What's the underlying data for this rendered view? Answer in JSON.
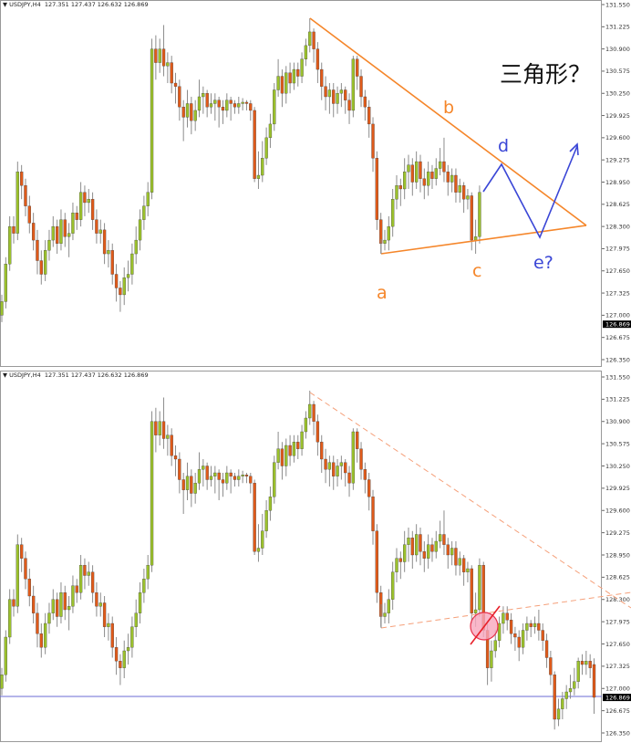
{
  "header": {
    "symbol": "USDJPY,H4",
    "ohlc": "127.351 127.437 126.632 126.869",
    "arrow": "▼"
  },
  "current_price": "126.869",
  "colors": {
    "bull": "#9bc12c",
    "bear": "#df5a1a",
    "wick": "#8c8c8c",
    "triangle": "#f5862a",
    "forecast": "#3a46d6",
    "current_line": "#6b6bd6",
    "circle": "#f07a9a",
    "slash": "#e8202a"
  },
  "annotations": {
    "a": "a",
    "b": "b",
    "c": "c",
    "d": "d",
    "e": "e?",
    "title": "三角形？"
  },
  "chart_data": [
    {
      "type": "candlestick",
      "panel": "top",
      "candles_shown": 122,
      "ylim": [
        126.35,
        131.55
      ],
      "yticks": [
        "131.550",
        "131.225",
        "130.900",
        "130.575",
        "130.250",
        "129.925",
        "129.600",
        "129.275",
        "128.950",
        "128.625",
        "128.300",
        "127.975",
        "127.650",
        "127.325",
        "127.000",
        "126.675",
        "126.350"
      ],
      "grid": false
    },
    {
      "type": "candlestick",
      "panel": "bottom",
      "candles_shown": 151,
      "ylim": [
        126.35,
        131.55
      ],
      "yticks": [
        "131.550",
        "131.225",
        "130.900",
        "130.575",
        "130.250",
        "129.925",
        "129.600",
        "129.275",
        "128.950",
        "128.625",
        "128.300",
        "127.975",
        "127.650",
        "127.325",
        "127.000",
        "126.675",
        "126.350"
      ],
      "grid": false
    }
  ],
  "candles": [
    [
      127.0,
      127.3,
      126.9,
      127.2
    ],
    [
      127.2,
      127.85,
      127.1,
      127.75
    ],
    [
      127.75,
      128.45,
      127.65,
      128.3
    ],
    [
      128.3,
      128.45,
      128.05,
      128.2
    ],
    [
      128.2,
      129.25,
      128.1,
      129.1
    ],
    [
      129.1,
      129.2,
      128.7,
      128.9
    ],
    [
      128.9,
      129.0,
      128.45,
      128.6
    ],
    [
      128.6,
      128.75,
      128.2,
      128.35
    ],
    [
      128.35,
      128.5,
      127.95,
      128.1
    ],
    [
      128.1,
      128.25,
      127.6,
      127.8
    ],
    [
      127.8,
      127.95,
      127.45,
      127.6
    ],
    [
      127.6,
      128.1,
      127.5,
      127.95
    ],
    [
      127.95,
      128.25,
      127.8,
      128.1
    ],
    [
      128.1,
      128.45,
      128.0,
      128.3
    ],
    [
      128.3,
      128.4,
      127.9,
      128.05
    ],
    [
      128.05,
      128.55,
      127.95,
      128.4
    ],
    [
      128.4,
      128.5,
      128.0,
      128.15
    ],
    [
      128.15,
      128.35,
      127.85,
      128.2
    ],
    [
      128.2,
      128.65,
      128.1,
      128.5
    ],
    [
      128.5,
      128.6,
      128.25,
      128.4
    ],
    [
      128.4,
      128.95,
      128.3,
      128.8
    ],
    [
      128.8,
      128.9,
      128.45,
      128.65
    ],
    [
      128.65,
      128.85,
      128.5,
      128.7
    ],
    [
      128.7,
      128.8,
      128.25,
      128.4
    ],
    [
      128.4,
      128.55,
      128.05,
      128.2
    ],
    [
      128.2,
      128.4,
      128.05,
      128.25
    ],
    [
      128.25,
      128.35,
      127.75,
      127.9
    ],
    [
      127.9,
      128.1,
      127.7,
      127.95
    ],
    [
      127.95,
      128.05,
      127.45,
      127.6
    ],
    [
      127.6,
      127.75,
      127.2,
      127.4
    ],
    [
      127.4,
      127.5,
      127.05,
      127.3
    ],
    [
      127.3,
      127.7,
      127.15,
      127.55
    ],
    [
      127.55,
      127.8,
      127.35,
      127.6
    ],
    [
      127.6,
      128.05,
      127.45,
      127.9
    ],
    [
      127.9,
      128.3,
      127.75,
      128.1
    ],
    [
      128.1,
      128.55,
      127.95,
      128.4
    ],
    [
      128.4,
      128.75,
      128.25,
      128.6
    ],
    [
      128.6,
      128.95,
      128.45,
      128.8
    ],
    [
      128.8,
      131.05,
      128.7,
      130.9
    ],
    [
      130.9,
      131.1,
      130.45,
      130.7
    ],
    [
      130.7,
      131.05,
      130.55,
      130.9
    ],
    [
      130.9,
      131.25,
      130.5,
      130.65
    ],
    [
      130.65,
      130.85,
      130.4,
      130.7
    ],
    [
      130.7,
      130.8,
      130.25,
      130.4
    ],
    [
      130.4,
      130.55,
      130.1,
      130.35
    ],
    [
      130.35,
      130.45,
      129.85,
      130.05
    ],
    [
      130.05,
      130.15,
      129.55,
      129.9
    ],
    [
      129.9,
      130.3,
      129.75,
      130.1
    ],
    [
      130.1,
      130.2,
      129.65,
      129.85
    ],
    [
      129.85,
      130.15,
      129.7,
      130.0
    ],
    [
      130.0,
      130.45,
      129.9,
      130.2
    ],
    [
      130.2,
      130.35,
      129.95,
      130.25
    ],
    [
      130.25,
      130.3,
      129.9,
      130.05
    ],
    [
      130.05,
      130.25,
      129.95,
      130.1
    ],
    [
      130.1,
      130.25,
      129.85,
      130.15
    ],
    [
      130.15,
      130.2,
      129.75,
      130.05
    ],
    [
      130.05,
      130.15,
      129.8,
      130.0
    ],
    [
      130.0,
      130.25,
      129.9,
      130.15
    ],
    [
      130.15,
      130.2,
      129.85,
      130.1
    ],
    [
      130.1,
      130.15,
      129.95,
      130.05
    ],
    [
      130.05,
      130.2,
      129.95,
      130.1
    ],
    [
      130.1,
      130.18,
      130.0,
      130.12
    ],
    [
      130.12,
      130.15,
      130.0,
      130.1
    ],
    [
      130.1,
      130.15,
      129.85,
      130.0
    ],
    [
      130.0,
      130.05,
      128.95,
      129.0
    ],
    [
      129.0,
      129.4,
      128.85,
      129.05
    ],
    [
      129.05,
      129.55,
      128.95,
      129.3
    ],
    [
      129.3,
      129.75,
      129.2,
      129.6
    ],
    [
      129.6,
      129.95,
      129.45,
      129.8
    ],
    [
      129.8,
      130.4,
      129.7,
      130.3
    ],
    [
      130.3,
      130.75,
      130.2,
      130.5
    ],
    [
      130.5,
      130.6,
      130.05,
      130.25
    ],
    [
      130.25,
      130.65,
      130.1,
      130.55
    ],
    [
      130.55,
      130.7,
      130.25,
      130.4
    ],
    [
      130.4,
      130.7,
      130.3,
      130.6
    ],
    [
      130.6,
      130.7,
      130.35,
      130.5
    ],
    [
      130.5,
      130.85,
      130.4,
      130.75
    ],
    [
      130.75,
      131.05,
      130.65,
      130.95
    ],
    [
      130.95,
      131.35,
      130.85,
      131.15
    ],
    [
      131.15,
      131.2,
      130.7,
      130.9
    ],
    [
      130.9,
      131.0,
      130.4,
      130.6
    ],
    [
      130.6,
      130.7,
      130.15,
      130.35
    ],
    [
      130.35,
      130.5,
      130.0,
      130.2
    ],
    [
      130.2,
      130.4,
      129.95,
      130.3
    ],
    [
      130.3,
      130.4,
      129.9,
      130.1
    ],
    [
      130.1,
      130.35,
      129.95,
      130.25
    ],
    [
      130.25,
      130.4,
      130.05,
      130.3
    ],
    [
      130.3,
      130.35,
      129.95,
      130.15
    ],
    [
      130.15,
      130.25,
      129.8,
      130.0
    ],
    [
      130.0,
      130.8,
      129.9,
      130.75
    ],
    [
      130.75,
      130.8,
      130.3,
      130.5
    ],
    [
      130.5,
      130.6,
      130.05,
      130.2
    ],
    [
      130.2,
      130.3,
      129.85,
      130.05
    ],
    [
      130.05,
      130.15,
      129.6,
      129.8
    ],
    [
      129.8,
      129.9,
      129.1,
      129.3
    ],
    [
      129.3,
      129.4,
      128.25,
      128.4
    ],
    [
      128.4,
      128.5,
      127.9,
      128.05
    ],
    [
      128.05,
      128.25,
      127.95,
      128.1
    ],
    [
      128.1,
      128.45,
      127.95,
      128.3
    ],
    [
      128.3,
      128.85,
      128.15,
      128.7
    ],
    [
      128.7,
      129.05,
      128.55,
      128.9
    ],
    [
      128.9,
      129.0,
      128.6,
      128.85
    ],
    [
      128.85,
      129.3,
      128.7,
      129.1
    ],
    [
      129.1,
      129.35,
      128.85,
      129.2
    ],
    [
      129.2,
      129.3,
      128.75,
      128.95
    ],
    [
      128.95,
      129.4,
      128.85,
      129.25
    ],
    [
      129.25,
      129.35,
      128.8,
      129.0
    ],
    [
      129.0,
      129.15,
      128.7,
      128.9
    ],
    [
      128.9,
      129.25,
      128.75,
      129.1
    ],
    [
      129.1,
      129.2,
      128.85,
      129.0
    ],
    [
      129.0,
      129.3,
      128.9,
      129.15
    ],
    [
      129.15,
      129.45,
      129.05,
      129.25
    ],
    [
      129.25,
      129.6,
      128.95,
      129.1
    ],
    [
      129.1,
      129.2,
      128.75,
      128.95
    ],
    [
      128.95,
      129.15,
      128.8,
      129.05
    ],
    [
      129.05,
      129.15,
      128.65,
      128.8
    ],
    [
      128.8,
      129.0,
      128.65,
      128.9
    ],
    [
      128.9,
      128.95,
      128.5,
      128.7
    ],
    [
      128.7,
      128.85,
      128.55,
      128.75
    ],
    [
      128.75,
      128.8,
      127.95,
      128.1
    ],
    [
      128.1,
      128.4,
      127.9,
      128.15
    ],
    [
      128.15,
      128.9,
      128.05,
      128.8
    ],
    [
      128.8,
      128.85,
      127.75,
      127.85
    ],
    [
      127.85,
      127.95,
      127.05,
      127.3
    ],
    [
      127.3,
      127.7,
      127.1,
      127.55
    ],
    [
      127.55,
      127.85,
      127.45,
      127.7
    ],
    [
      127.7,
      128.05,
      127.6,
      127.95
    ],
    [
      127.95,
      128.2,
      127.8,
      128.1
    ],
    [
      128.1,
      128.2,
      127.85,
      128.0
    ],
    [
      128.0,
      128.1,
      127.65,
      127.8
    ],
    [
      127.8,
      127.9,
      127.55,
      127.75
    ],
    [
      127.75,
      127.85,
      127.4,
      127.6
    ],
    [
      127.6,
      127.95,
      127.5,
      127.85
    ],
    [
      127.85,
      128.05,
      127.7,
      127.95
    ],
    [
      127.95,
      128.0,
      127.75,
      127.9
    ],
    [
      127.9,
      128.05,
      127.8,
      127.95
    ],
    [
      127.95,
      128.15,
      127.7,
      127.85
    ],
    [
      127.85,
      127.95,
      127.55,
      127.7
    ],
    [
      127.7,
      127.8,
      127.3,
      127.45
    ],
    [
      127.45,
      127.55,
      127.05,
      127.2
    ],
    [
      127.2,
      127.25,
      126.4,
      126.55
    ],
    [
      126.55,
      126.85,
      126.45,
      126.7
    ],
    [
      126.7,
      126.95,
      126.55,
      126.85
    ],
    [
      126.85,
      127.05,
      126.7,
      126.95
    ],
    [
      126.95,
      127.2,
      126.85,
      127.0
    ],
    [
      127.0,
      127.3,
      126.9,
      127.1
    ],
    [
      127.1,
      127.45,
      127.0,
      127.4
    ],
    [
      127.4,
      127.5,
      127.2,
      127.35
    ],
    [
      127.35,
      127.55,
      127.2,
      127.4
    ],
    [
      127.4,
      127.5,
      127.15,
      127.3
    ],
    [
      127.35,
      127.44,
      126.63,
      126.87
    ]
  ]
}
